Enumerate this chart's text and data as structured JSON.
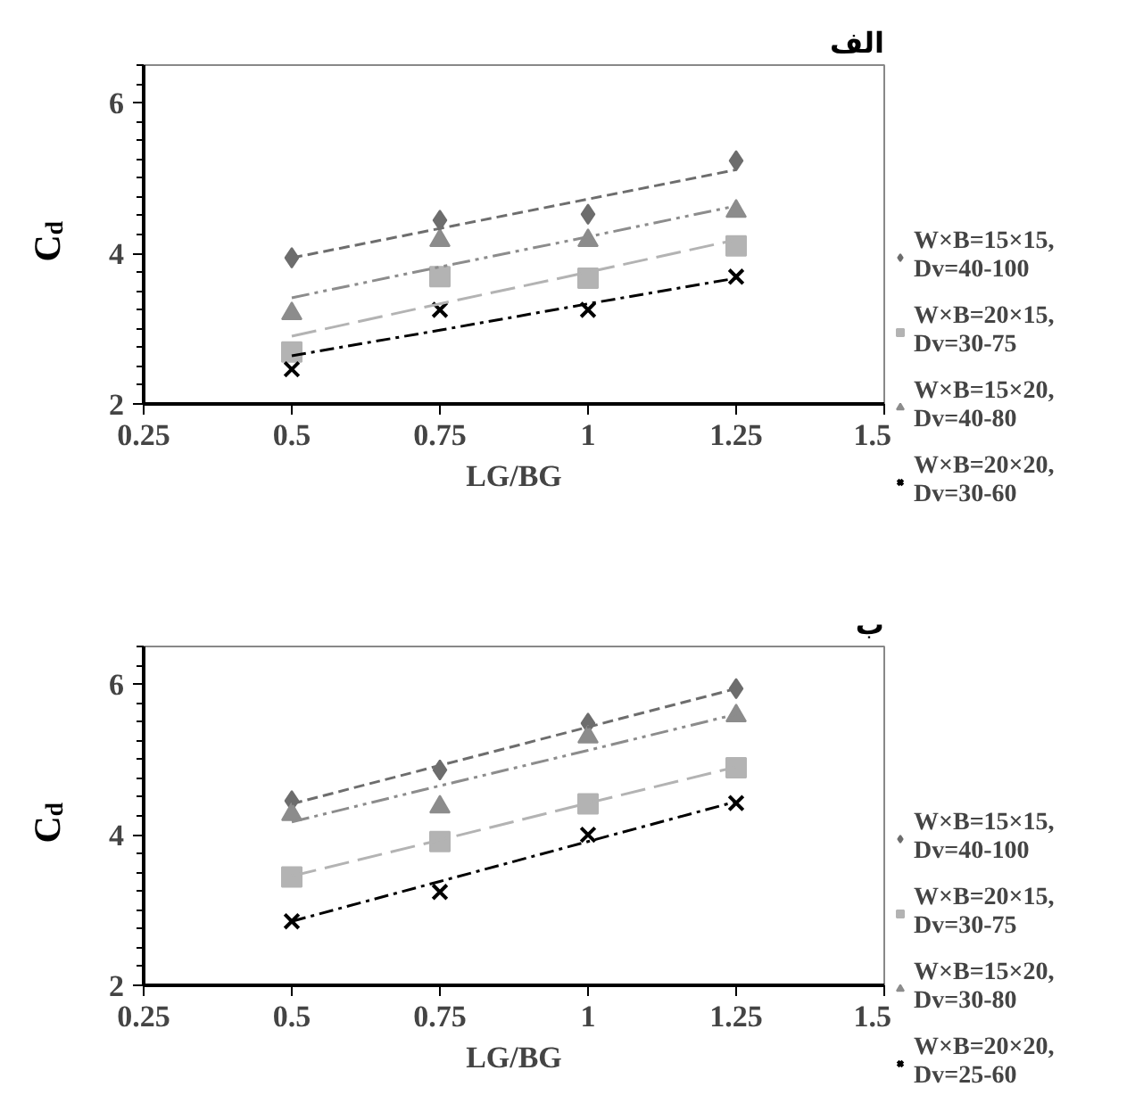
{
  "chart_data": [
    {
      "type": "scatter",
      "title": "الف",
      "xlabel": "LG/BG",
      "ylabel": "C$_{d}$",
      "x": [
        0.5,
        0.75,
        1,
        1.25
      ],
      "xlim": [
        0.25,
        1.5
      ],
      "xticks": [
        0.25,
        0.5,
        0.75,
        1,
        1.25,
        1.5
      ],
      "ylim": [
        2,
        6.5
      ],
      "yticks": [
        2,
        4,
        6
      ],
      "grid": false,
      "legend": "right",
      "series": [
        {
          "name": "W×B=15×15,\nDv=40-100",
          "color": "#6d6d6d",
          "marker": "diamond",
          "values": [
            3.94,
            4.44,
            4.52,
            5.23
          ]
        },
        {
          "name": "W×B=20×15,\nDv=30-75",
          "color": "#b3b3b3",
          "marker": "square",
          "values": [
            2.69,
            3.69,
            3.67,
            4.1
          ]
        },
        {
          "name": "W×B=15×20,\nDv=40-80",
          "color": "#8c8c8c",
          "marker": "triangle",
          "values": [
            3.2,
            4.17,
            4.17,
            4.56
          ]
        },
        {
          "name": "W×B=20×20,\nDv=30-60",
          "color": "#000000",
          "marker": "cross",
          "values": [
            2.46,
            3.25,
            3.25,
            3.69
          ]
        },
        {
          "type": "line",
          "color": "#6d6d6d",
          "line_style": "dashed",
          "values": [
            3.94,
            4.33,
            4.72,
            5.11
          ]
        },
        {
          "type": "line",
          "color": "#b3b3b3",
          "line_style": "dashed",
          "values": [
            2.9,
            3.33,
            3.75,
            4.18
          ]
        },
        {
          "type": "line",
          "color": "#8c8c8c",
          "line_style": "dashed",
          "values": [
            3.41,
            3.82,
            4.22,
            4.63
          ]
        },
        {
          "type": "line",
          "color": "#000000",
          "line_style": "dashed",
          "values": [
            2.64,
            2.98,
            3.33,
            3.67
          ]
        }
      ]
    },
    {
      "type": "scatter",
      "title": "ب",
      "xlabel": "LG/BG",
      "ylabel": "C$_{d}$",
      "x": [
        0.5,
        0.75,
        1,
        1.25
      ],
      "xlim": [
        0.25,
        1.5
      ],
      "xticks": [
        0.25,
        0.5,
        0.75,
        1,
        1.25,
        1.5
      ],
      "ylim": [
        2,
        6.5
      ],
      "yticks": [
        2,
        4,
        6
      ],
      "grid": false,
      "legend": "right",
      "series": [
        {
          "name": "W×B=15×15,\nDv=40-100",
          "color": "#6d6d6d",
          "marker": "diamond",
          "values": [
            4.45,
            4.86,
            5.48,
            5.94
          ]
        },
        {
          "name": "W×B=20×15,\nDv=30-75",
          "color": "#b3b3b3",
          "marker": "square",
          "values": [
            3.44,
            3.91,
            4.41,
            4.89
          ]
        },
        {
          "name": "W×B=15×20,\nDv=30-80",
          "color": "#8c8c8c",
          "marker": "triangle",
          "values": [
            4.27,
            4.37,
            5.3,
            5.58
          ]
        },
        {
          "name": "W×B=20×20,\nDv=25-60",
          "color": "#000000",
          "marker": "cross",
          "values": [
            2.85,
            3.24,
            4.0,
            4.42
          ]
        },
        {
          "type": "line",
          "color": "#6d6d6d",
          "line_style": "dashed",
          "values": [
            4.41,
            4.92,
            5.43,
            5.94
          ]
        },
        {
          "type": "line",
          "color": "#b3b3b3",
          "line_style": "dashed",
          "values": [
            3.45,
            3.93,
            4.42,
            4.9
          ]
        },
        {
          "type": "line",
          "color": "#8c8c8c",
          "line_style": "dashed",
          "values": [
            4.17,
            4.65,
            5.12,
            5.6
          ]
        },
        {
          "type": "line",
          "color": "#000000",
          "line_style": "dashed",
          "values": [
            2.85,
            3.38,
            3.91,
            4.44
          ]
        }
      ]
    }
  ]
}
